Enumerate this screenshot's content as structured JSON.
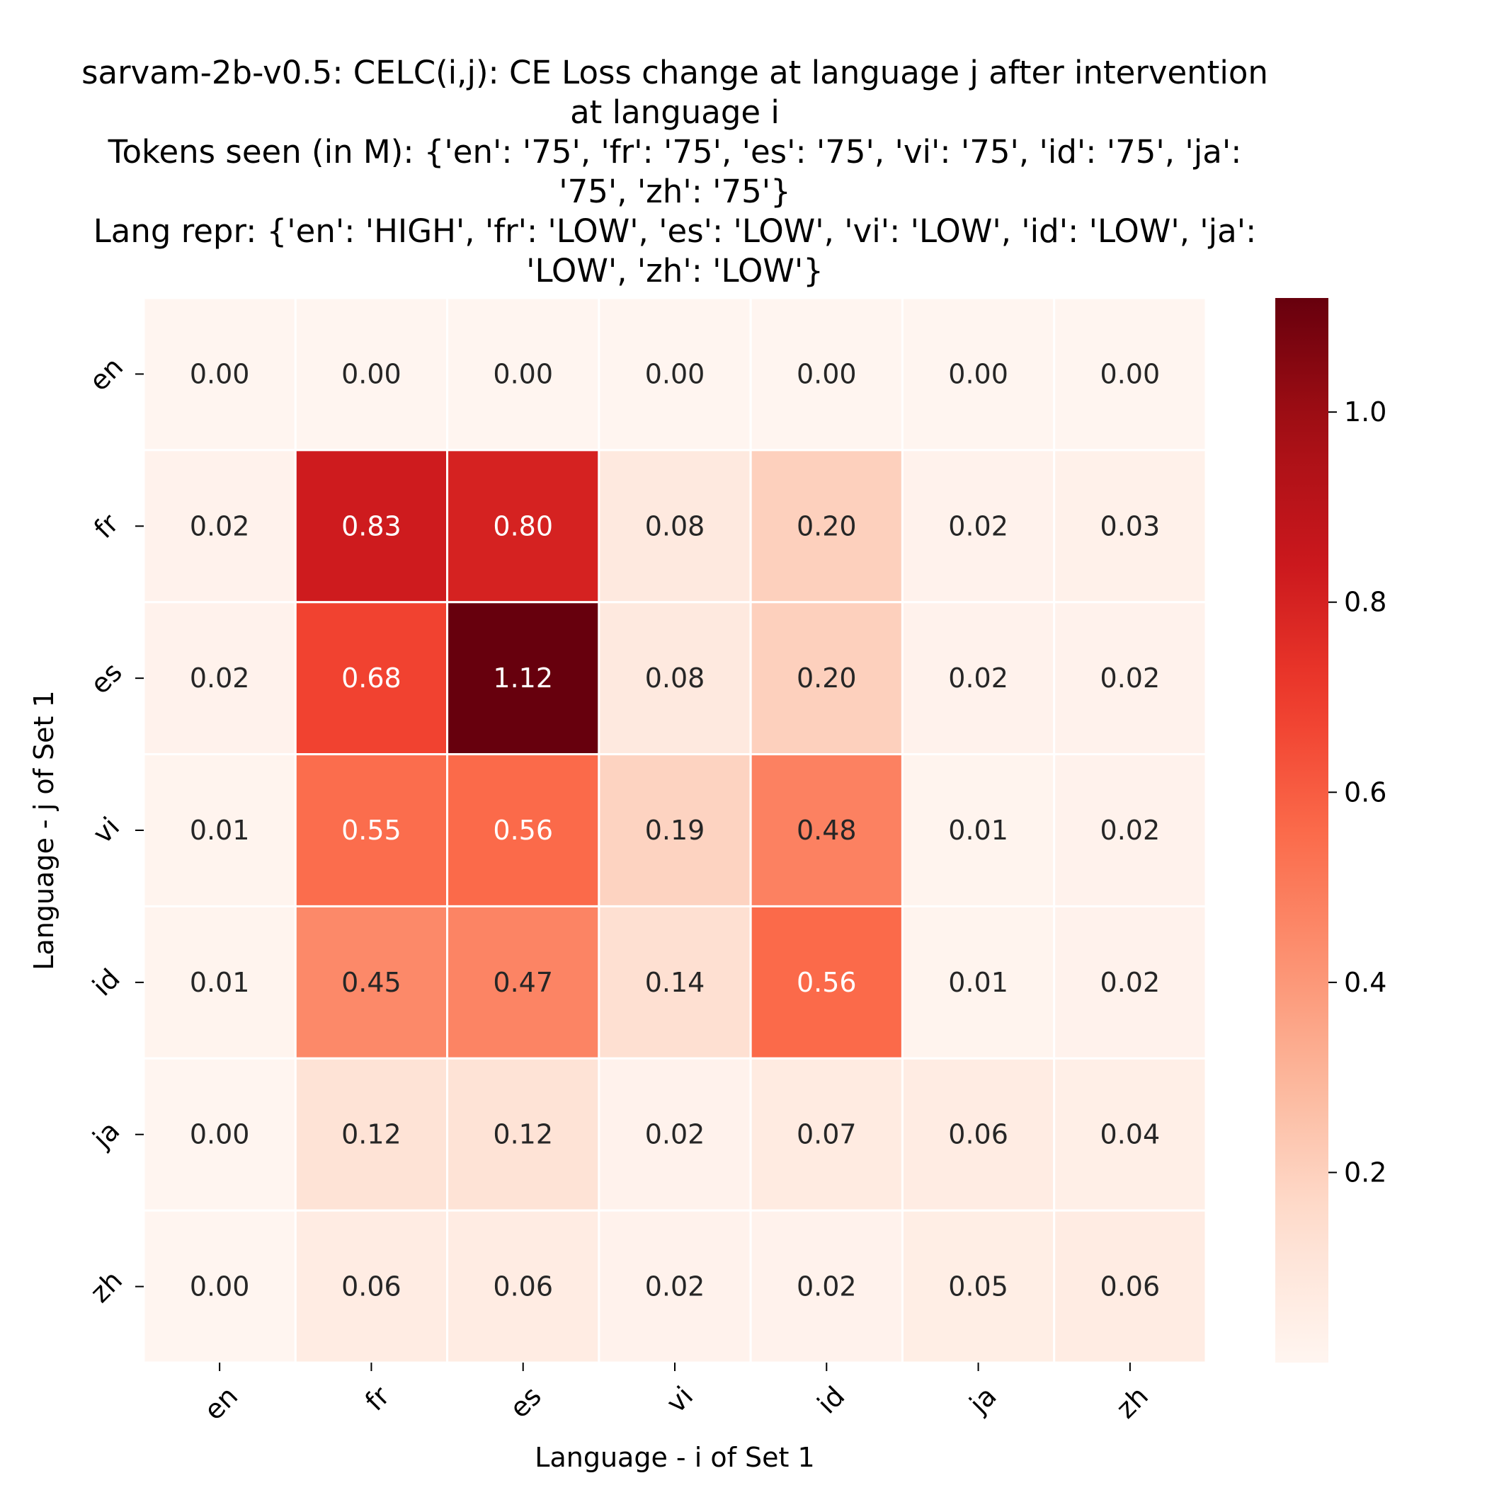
{
  "chart_data": {
    "type": "heatmap",
    "title_lines": [
      "sarvam-2b-v0.5: CELC(i,j): CE Loss change at language j after intervention",
      "at language i",
      "Tokens seen (in M): {'en': '75', 'fr': '75', 'es': '75', 'vi': '75', 'id': '75', 'ja':",
      "'75', 'zh': '75'}",
      "Lang repr: {'en': 'HIGH', 'fr': 'LOW', 'es': 'LOW', 'vi': 'LOW', 'id': 'LOW', 'ja':",
      "'LOW', 'zh': 'LOW'}"
    ],
    "xlabel": "Language - i of Set 1",
    "ylabel": "Language - j of Set 1",
    "x_categories": [
      "en",
      "fr",
      "es",
      "vi",
      "id",
      "ja",
      "zh"
    ],
    "y_categories": [
      "en",
      "fr",
      "es",
      "vi",
      "id",
      "ja",
      "zh"
    ],
    "values": [
      [
        0.0,
        0.0,
        0.0,
        0.0,
        0.0,
        0.0,
        0.0
      ],
      [
        0.02,
        0.83,
        0.8,
        0.08,
        0.2,
        0.02,
        0.03
      ],
      [
        0.02,
        0.68,
        1.12,
        0.08,
        0.2,
        0.02,
        0.02
      ],
      [
        0.01,
        0.55,
        0.56,
        0.19,
        0.48,
        0.01,
        0.02
      ],
      [
        0.01,
        0.45,
        0.47,
        0.14,
        0.56,
        0.01,
        0.02
      ],
      [
        0.0,
        0.12,
        0.12,
        0.02,
        0.07,
        0.06,
        0.04
      ],
      [
        0.0,
        0.06,
        0.06,
        0.02,
        0.02,
        0.05,
        0.06
      ]
    ],
    "value_format": "0.00",
    "colormap": "Reds",
    "colorbar": {
      "range": [
        0.0,
        1.12
      ],
      "ticks": [
        0.2,
        0.4,
        0.6,
        0.8,
        1.0
      ],
      "tick_labels": [
        "0.2",
        "0.4",
        "0.6",
        "0.8",
        "1.0"
      ]
    },
    "cell_border_color": "#ffffff",
    "grid": false
  }
}
